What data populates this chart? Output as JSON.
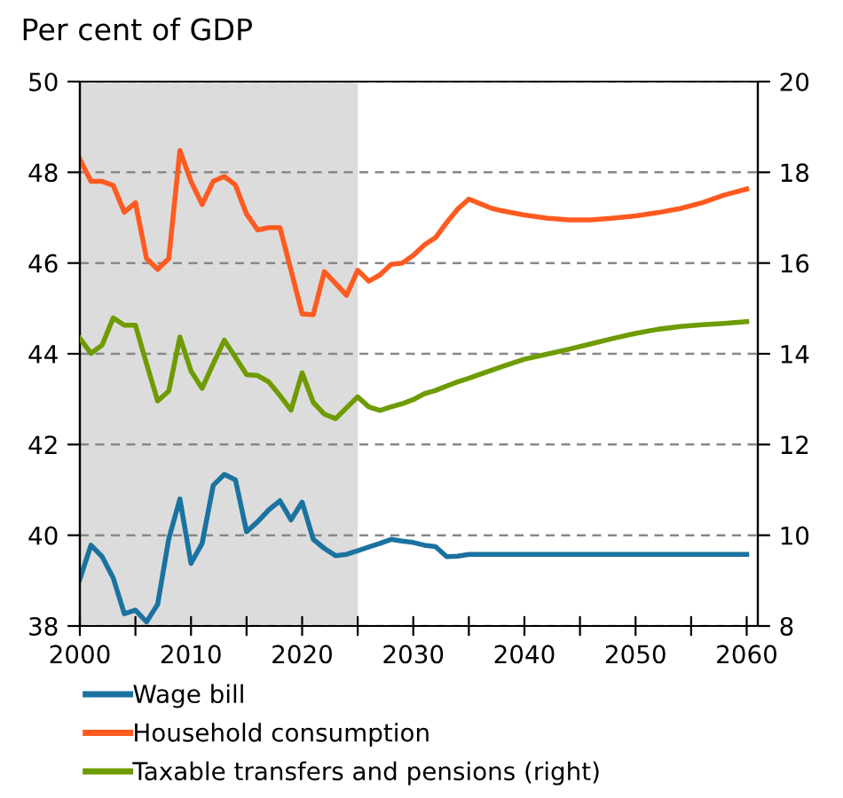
{
  "chart_data": {
    "type": "line",
    "ylabel": "Per cent of GDP",
    "series": [
      {
        "name": "Wage bill",
        "color": "#1a72a0",
        "x": [
          2000,
          2001,
          2002,
          2003,
          2004,
          2005,
          2006,
          2007,
          2008,
          2009,
          2010,
          2011,
          2012,
          2013,
          2014,
          2015,
          2016,
          2017,
          2018,
          2019,
          2020,
          2021,
          2022,
          2023,
          2024,
          2025,
          2026,
          2027,
          2028,
          2029,
          2030,
          2031,
          2032,
          2033,
          2034,
          2035,
          2040,
          2045,
          2050,
          2055,
          2060
        ],
        "values": [
          39.03,
          39.78,
          39.53,
          39.06,
          38.27,
          38.35,
          38.09,
          38.48,
          39.92,
          40.8,
          39.38,
          39.82,
          41.1,
          41.34,
          41.22,
          40.08,
          40.3,
          40.56,
          40.76,
          40.34,
          40.73,
          39.91,
          39.71,
          39.55,
          39.58,
          39.66,
          39.74,
          39.82,
          39.91,
          39.87,
          39.84,
          39.78,
          39.75,
          39.53,
          39.54,
          39.58,
          39.58,
          39.58,
          39.58,
          39.58,
          39.58
        ]
      },
      {
        "name": "Household consumption",
        "color": "#ff5a1f",
        "x": [
          2000,
          2001,
          2002,
          2003,
          2004,
          2005,
          2006,
          2007,
          2008,
          2009,
          2010,
          2011,
          2012,
          2013,
          2014,
          2015,
          2016,
          2017,
          2018,
          2019,
          2020,
          2021,
          2022,
          2023,
          2024,
          2025,
          2026,
          2027,
          2028,
          2029,
          2030,
          2031,
          2032,
          2033,
          2034,
          2035,
          2036,
          2037,
          2038,
          2040,
          2042,
          2044,
          2046,
          2048,
          2050,
          2052,
          2054,
          2056,
          2058,
          2060
        ],
        "values": [
          48.29,
          47.8,
          47.8,
          47.71,
          47.12,
          47.33,
          46.1,
          45.86,
          46.1,
          48.48,
          47.8,
          47.29,
          47.8,
          47.91,
          47.72,
          47.08,
          46.73,
          46.78,
          46.78,
          45.84,
          44.88,
          44.86,
          45.81,
          45.55,
          45.29,
          45.84,
          45.6,
          45.74,
          45.97,
          46.0,
          46.17,
          46.4,
          46.56,
          46.89,
          47.19,
          47.41,
          47.31,
          47.21,
          47.15,
          47.06,
          46.99,
          46.95,
          46.95,
          46.99,
          47.04,
          47.11,
          47.2,
          47.33,
          47.5,
          47.63
        ]
      },
      {
        "name": "Taxable transfers and pensions (right)",
        "color": "#6e9b00",
        "axis": "y2",
        "x": [
          2000,
          2001,
          2002,
          2003,
          2004,
          2005,
          2006,
          2007,
          2008,
          2009,
          2010,
          2011,
          2012,
          2013,
          2014,
          2015,
          2016,
          2017,
          2018,
          2019,
          2020,
          2021,
          2022,
          2023,
          2024,
          2025,
          2026,
          2027,
          2028,
          2029,
          2030,
          2031,
          2032,
          2033,
          2034,
          2035,
          2036,
          2038,
          2040,
          2042,
          2044,
          2046,
          2048,
          2050,
          2052,
          2054,
          2056,
          2058,
          2060
        ],
        "values": [
          14.34,
          14.01,
          14.19,
          14.79,
          14.63,
          14.63,
          13.78,
          12.96,
          13.18,
          14.37,
          13.62,
          13.24,
          13.78,
          14.3,
          13.92,
          13.54,
          13.52,
          13.38,
          13.08,
          12.76,
          13.58,
          12.93,
          12.67,
          12.57,
          12.81,
          13.05,
          12.83,
          12.75,
          12.83,
          12.9,
          12.99,
          13.12,
          13.19,
          13.29,
          13.38,
          13.46,
          13.55,
          13.72,
          13.88,
          13.99,
          14.1,
          14.22,
          14.34,
          14.45,
          14.54,
          14.6,
          14.64,
          14.67,
          14.71
        ]
      }
    ],
    "xlim": [
      2000,
      2061
    ],
    "xticks": [
      2000,
      {
        "value": 2005,
        "label": null
      },
      2010,
      {
        "value": 2015,
        "label": null
      },
      2020,
      {
        "value": 2025,
        "label": null
      },
      2030,
      {
        "value": 2035,
        "label": null
      },
      2040,
      {
        "value": 2045,
        "label": null
      },
      2050,
      {
        "value": 2055,
        "label": null
      },
      2060
    ],
    "ylim": [
      38,
      50
    ],
    "yticks": [
      38,
      40,
      42,
      44,
      46,
      48,
      50
    ],
    "y2lim": [
      8,
      20
    ],
    "y2ticks": [
      8,
      10,
      12,
      14,
      16,
      18,
      20
    ],
    "bands": [
      {
        "axis": "x",
        "from": 2000,
        "to": 2025,
        "color": "#dcdcdc"
      }
    ],
    "grid": "y",
    "legend": "bottom",
    "line_style": "solid",
    "marker": "none"
  }
}
